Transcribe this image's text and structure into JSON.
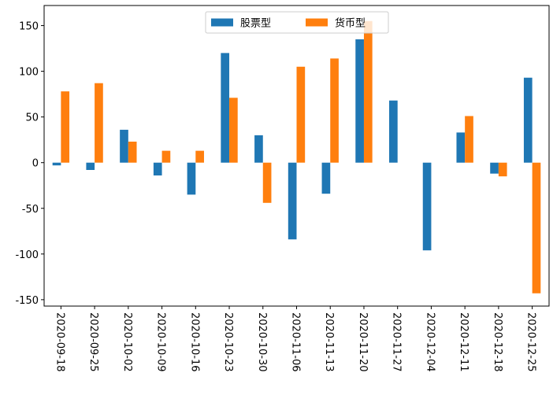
{
  "chart_data": {
    "type": "bar",
    "categories": [
      "2020-09-18",
      "2020-09-25",
      "2020-10-02",
      "2020-10-09",
      "2020-10-16",
      "2020-10-23",
      "2020-10-30",
      "2020-11-06",
      "2020-11-13",
      "2020-11-20",
      "2020-11-27",
      "2020-12-04",
      "2020-12-11",
      "2020-12-18",
      "2020-12-25"
    ],
    "series": [
      {
        "name": "股票型",
        "color": "#1f77b4",
        "values": [
          -3,
          -8,
          36,
          -14,
          -35,
          120,
          30,
          -84,
          -34,
          135,
          68,
          -96,
          33,
          -12,
          93
        ]
      },
      {
        "name": "货币型",
        "color": "#ff7f0e",
        "values": [
          78,
          87,
          23,
          13,
          13,
          71,
          -44,
          105,
          114,
          155,
          0,
          0,
          51,
          -15,
          -143
        ]
      }
    ],
    "yticks": [
      -150,
      -100,
      -50,
      0,
      50,
      100,
      150
    ],
    "ylim": [
      -157,
      172
    ],
    "legend_position": "top-center",
    "xtick_rotation": "vertical"
  }
}
